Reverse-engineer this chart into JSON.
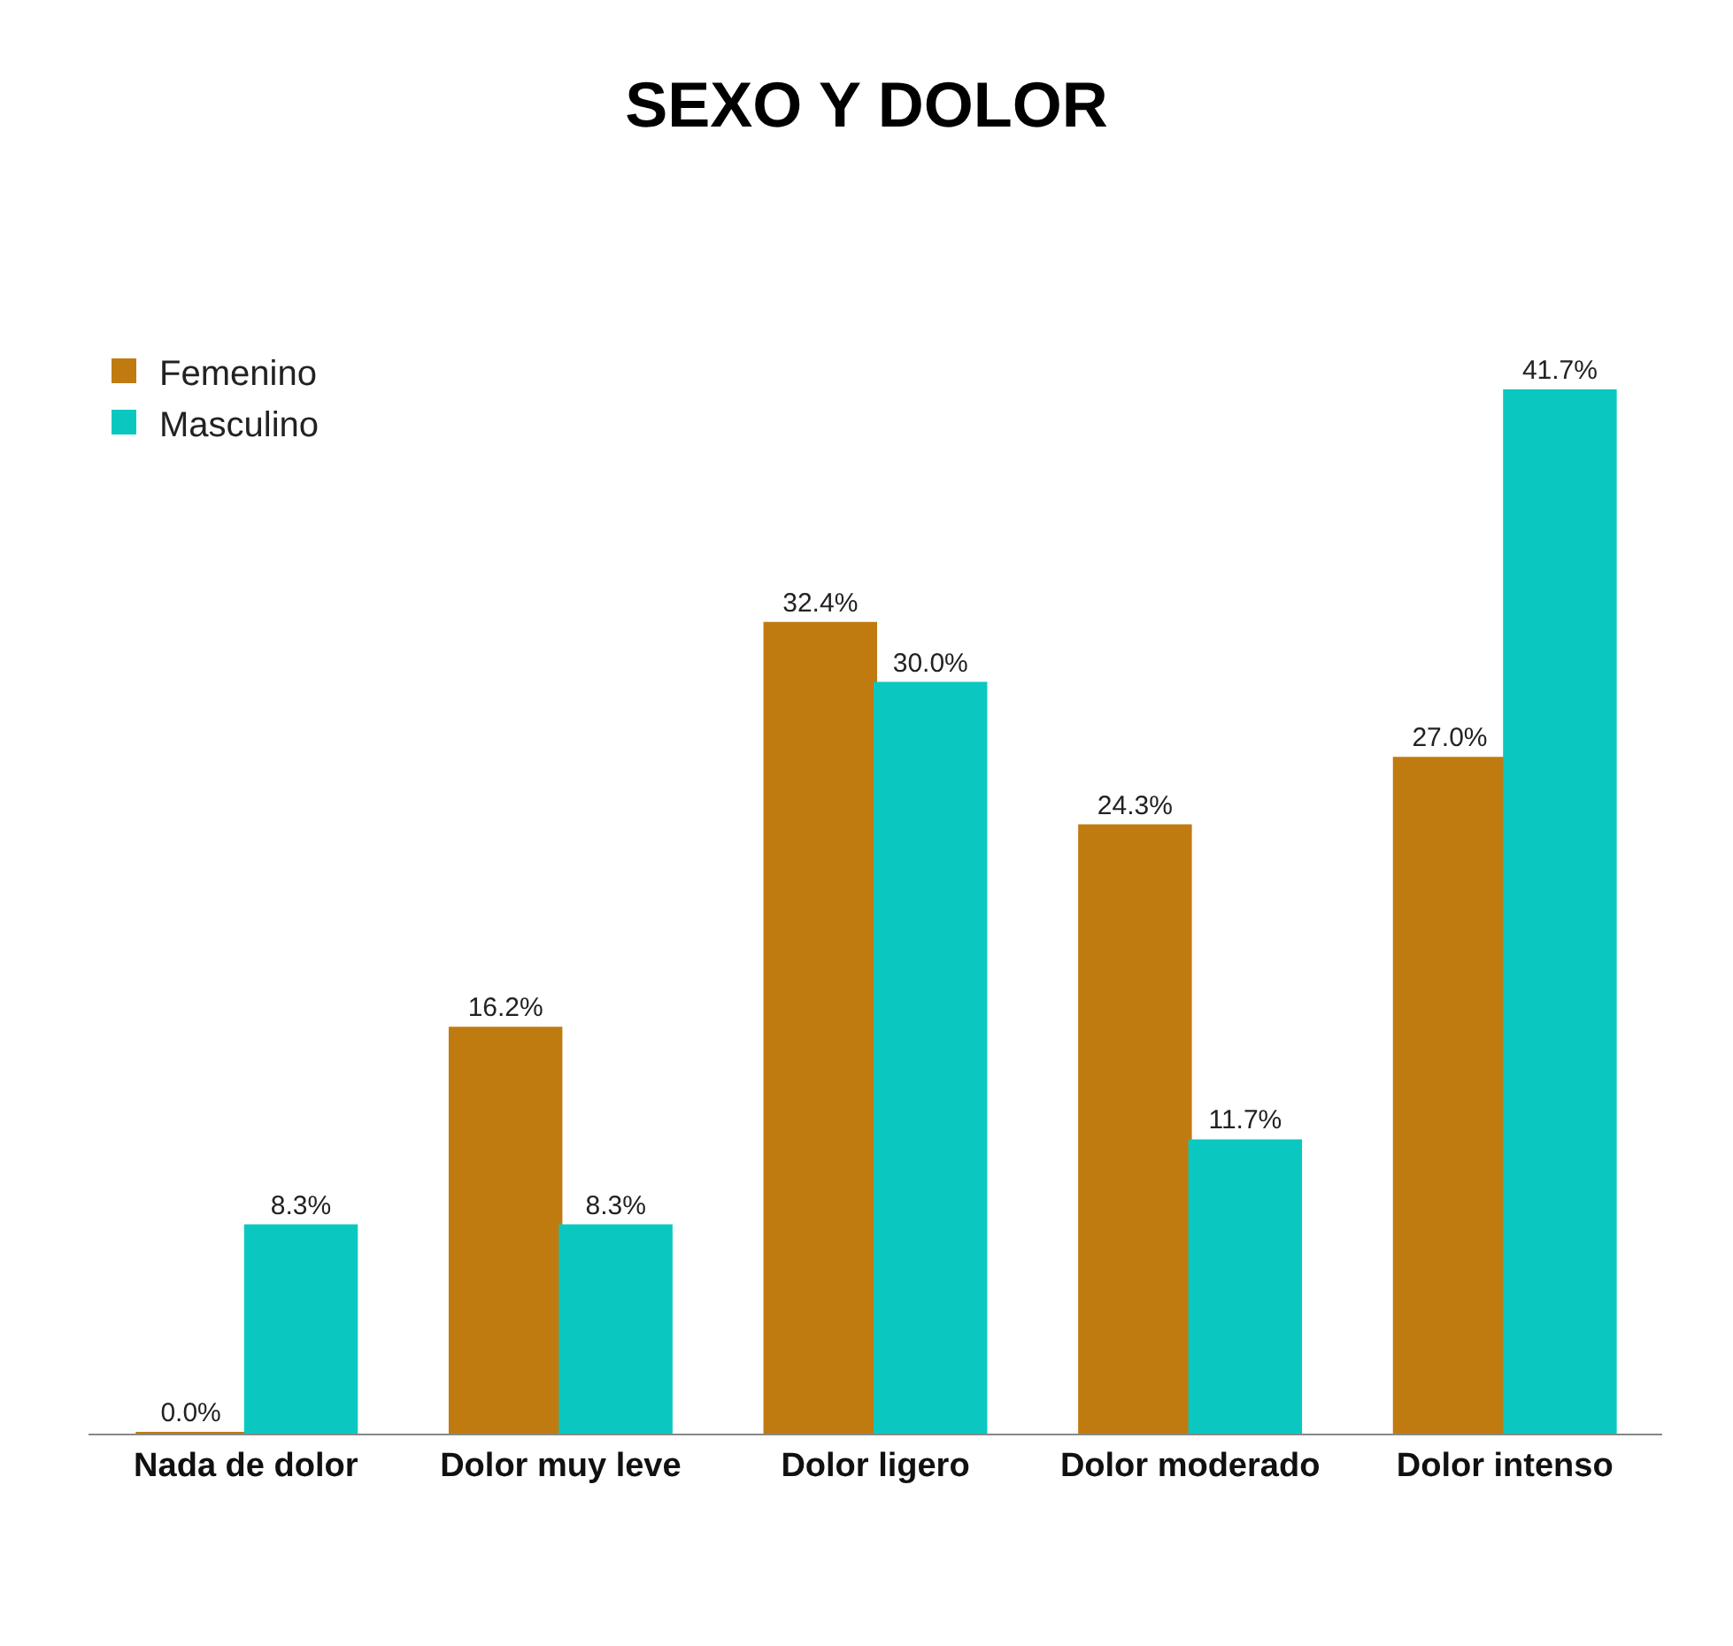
{
  "chart_data": {
    "type": "bar",
    "title": "SEXO Y DOLOR",
    "categories": [
      "Nada de dolor",
      "Dolor muy leve",
      "Dolor ligero",
      "Dolor moderado",
      "Dolor intenso"
    ],
    "series": [
      {
        "name": "Femenino",
        "color": "#c07b10",
        "values": [
          0.0,
          16.2,
          32.4,
          24.3,
          27.0
        ],
        "value_labels": [
          "0.0%",
          "16.2%",
          "32.4%",
          "24.3%",
          "27.0%"
        ]
      },
      {
        "name": "Masculino",
        "color": "#0ac8c0",
        "values": [
          8.3,
          8.3,
          30.0,
          11.7,
          41.7
        ],
        "value_labels": [
          "8.3%",
          "8.3%",
          "30.0%",
          "11.7%",
          "41.7%"
        ]
      }
    ],
    "legend": "top left"
  }
}
